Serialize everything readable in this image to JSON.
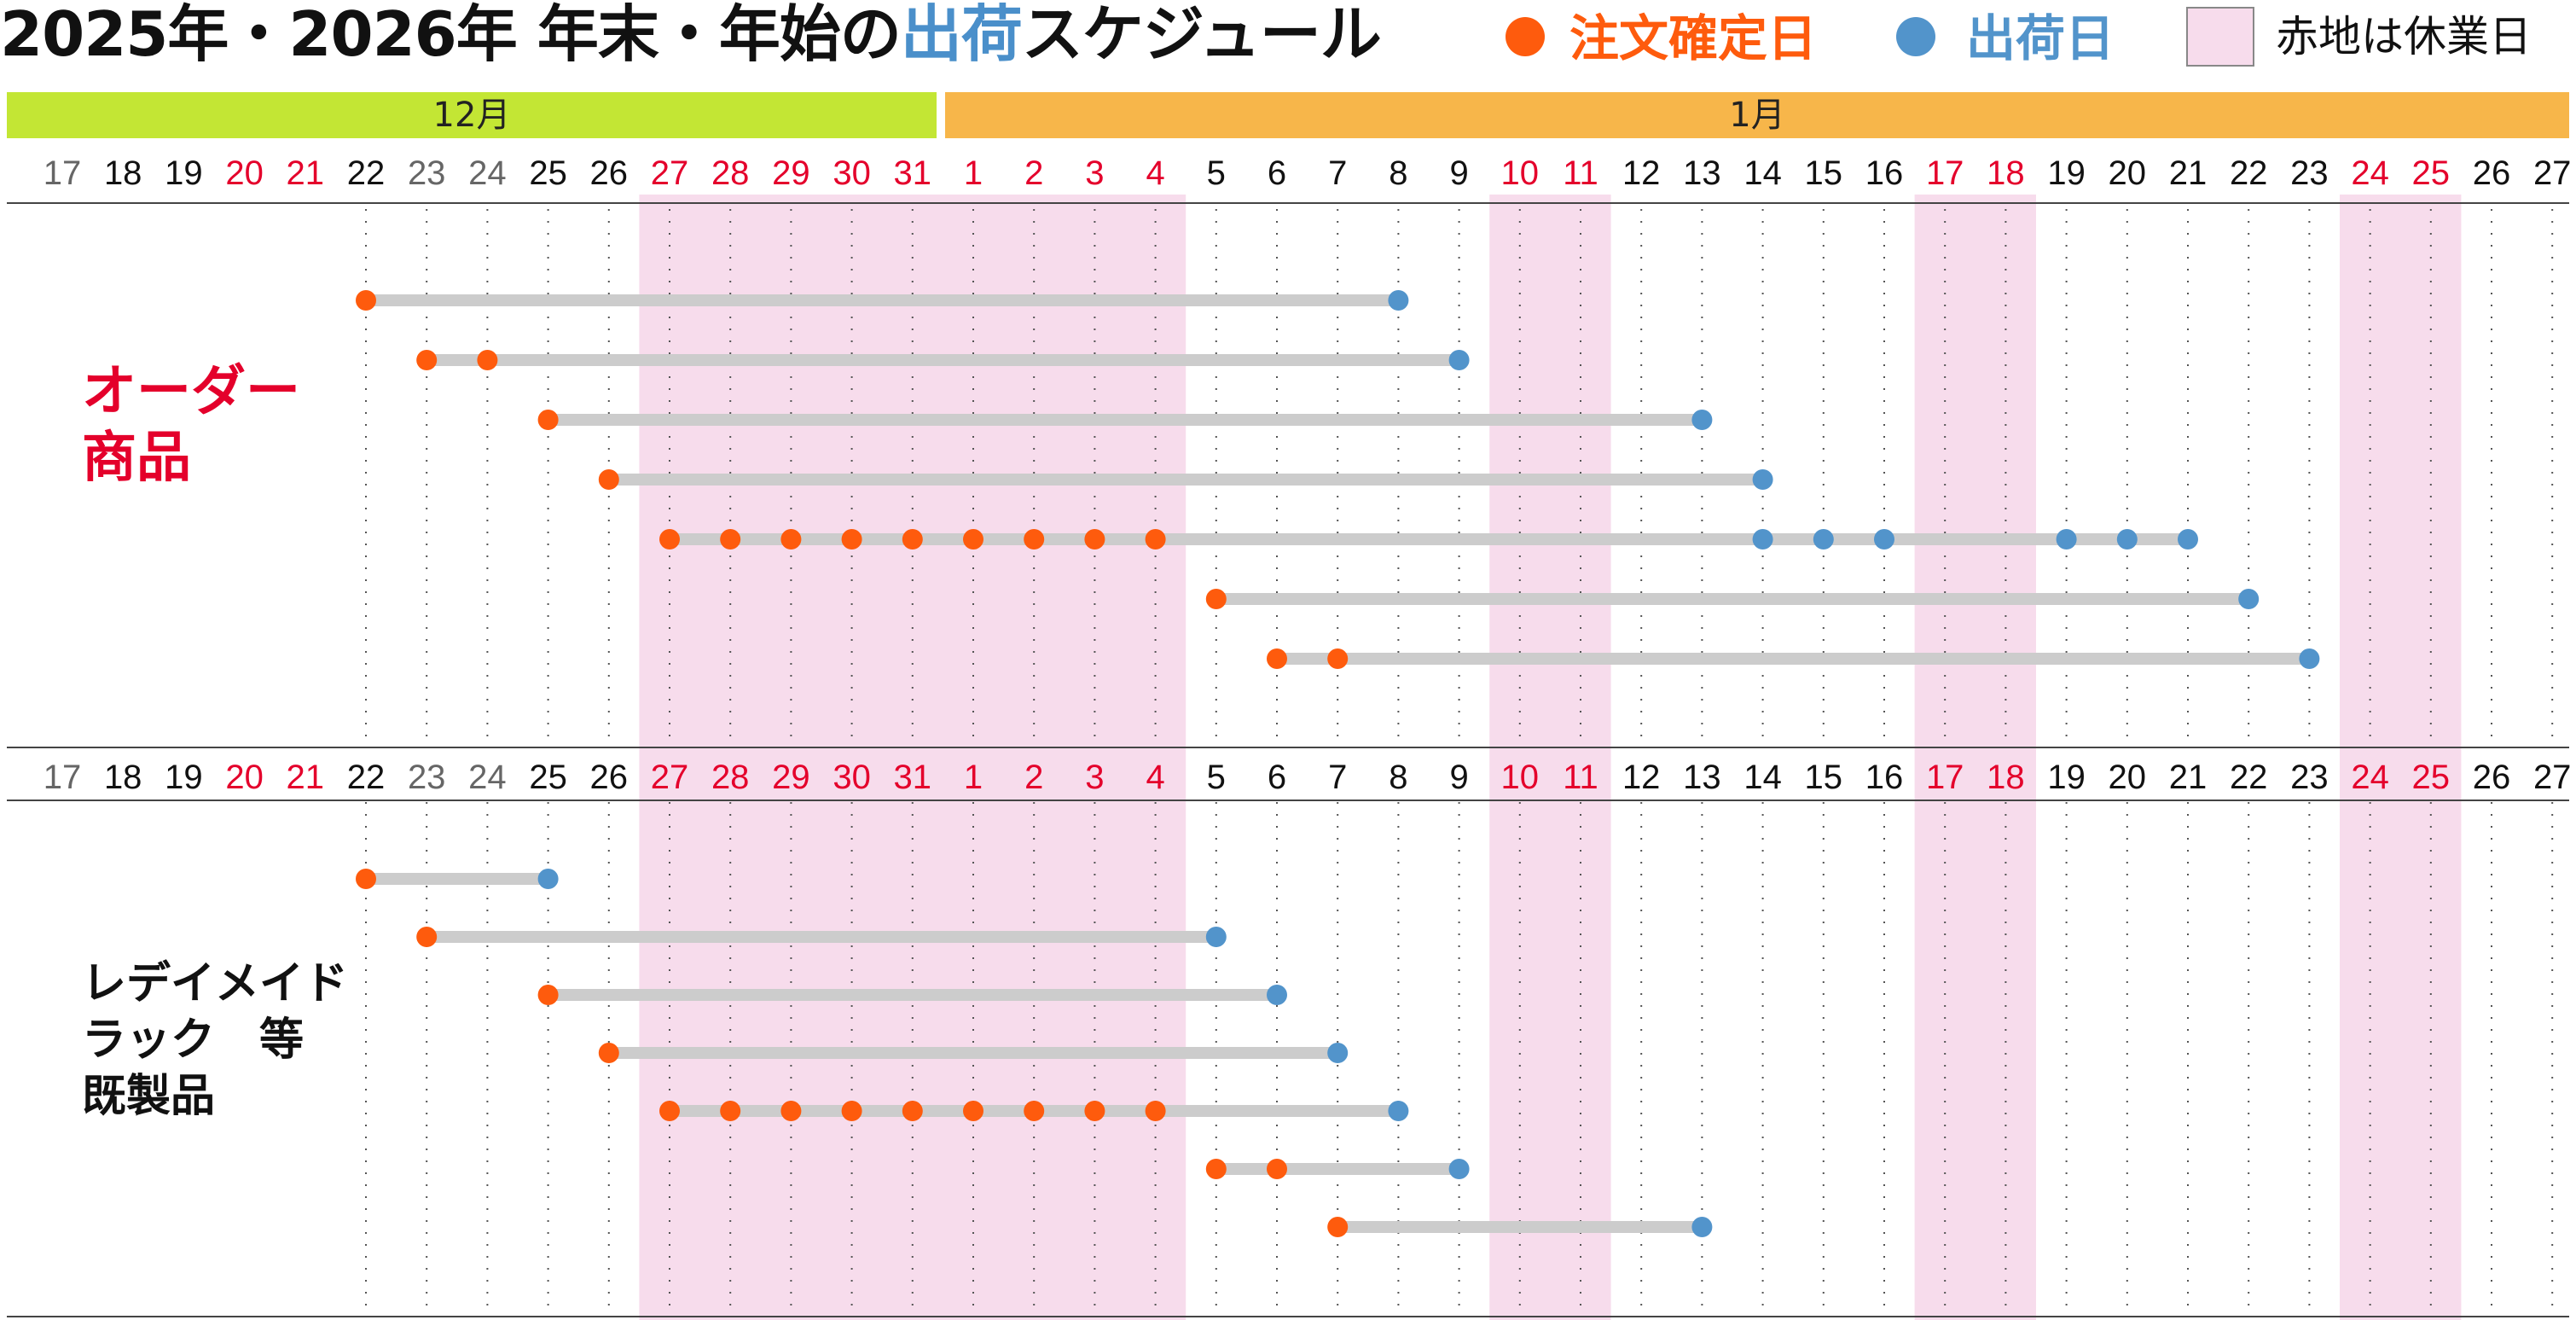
{
  "title": {
    "part1": "2025年・2026年 年末・年始の",
    "part2": "出荷",
    "part3": "スケジュール"
  },
  "legend": {
    "order_label": "注文確定日",
    "ship_label": "出荷日",
    "holiday_label": "赤地は休業日"
  },
  "colors": {
    "order": "#fe5b0d",
    "ship": "#5294cb",
    "holiday_bg": "#f7dcec",
    "bar": "#cccccc",
    "month_dec": "#c3e634",
    "month_jan": "#f7b64a",
    "red_day": "#e4002b",
    "gray_day": "#666666",
    "black_day": "#111111"
  },
  "months": [
    {
      "label": "12月"
    },
    {
      "label": "1月"
    }
  ],
  "days": [
    {
      "label": "17",
      "style": "gray"
    },
    {
      "label": "18",
      "style": "black"
    },
    {
      "label": "19",
      "style": "black"
    },
    {
      "label": "20",
      "style": "red"
    },
    {
      "label": "21",
      "style": "red"
    },
    {
      "label": "22",
      "style": "black"
    },
    {
      "label": "23",
      "style": "gray"
    },
    {
      "label": "24",
      "style": "gray"
    },
    {
      "label": "25",
      "style": "black"
    },
    {
      "label": "26",
      "style": "black"
    },
    {
      "label": "27",
      "style": "red"
    },
    {
      "label": "28",
      "style": "red"
    },
    {
      "label": "29",
      "style": "red"
    },
    {
      "label": "30",
      "style": "red"
    },
    {
      "label": "31",
      "style": "red"
    },
    {
      "label": "1",
      "style": "red"
    },
    {
      "label": "2",
      "style": "red"
    },
    {
      "label": "3",
      "style": "red"
    },
    {
      "label": "4",
      "style": "red"
    },
    {
      "label": "5",
      "style": "black"
    },
    {
      "label": "6",
      "style": "black"
    },
    {
      "label": "7",
      "style": "black"
    },
    {
      "label": "8",
      "style": "black"
    },
    {
      "label": "9",
      "style": "black"
    },
    {
      "label": "10",
      "style": "red"
    },
    {
      "label": "11",
      "style": "red"
    },
    {
      "label": "12",
      "style": "black"
    },
    {
      "label": "13",
      "style": "black"
    },
    {
      "label": "14",
      "style": "black"
    },
    {
      "label": "15",
      "style": "black"
    },
    {
      "label": "16",
      "style": "black"
    },
    {
      "label": "17",
      "style": "red"
    },
    {
      "label": "18",
      "style": "red"
    },
    {
      "label": "19",
      "style": "black"
    },
    {
      "label": "20",
      "style": "black"
    },
    {
      "label": "21",
      "style": "black"
    },
    {
      "label": "22",
      "style": "black"
    },
    {
      "label": "23",
      "style": "black"
    },
    {
      "label": "24",
      "style": "red"
    },
    {
      "label": "25",
      "style": "red"
    },
    {
      "label": "26",
      "style": "black"
    },
    {
      "label": "27",
      "style": "black"
    }
  ],
  "holiday_ranges": [
    {
      "from": "2025-12-27",
      "to": "2026-01-04"
    },
    {
      "from": "2026-01-10",
      "to": "2026-01-11"
    },
    {
      "from": "2026-01-17",
      "to": "2026-01-18"
    },
    {
      "from": "2026-01-24",
      "to": "2026-01-25"
    }
  ],
  "sections": [
    {
      "id": "order",
      "label_lines": [
        "オーダー",
        "商品"
      ],
      "label_color": "#e4002b",
      "rows": [
        {
          "orders": [
            "2025-12-22"
          ],
          "ships": [
            "2026-01-08"
          ]
        },
        {
          "orders": [
            "2025-12-23",
            "2025-12-24"
          ],
          "ships": [
            "2026-01-09"
          ]
        },
        {
          "orders": [
            "2025-12-25"
          ],
          "ships": [
            "2026-01-13"
          ]
        },
        {
          "orders": [
            "2025-12-26"
          ],
          "ships": [
            "2026-01-14"
          ]
        },
        {
          "orders": [
            "2025-12-27",
            "2025-12-28",
            "2025-12-29",
            "2025-12-30",
            "2025-12-31",
            "2026-01-01",
            "2026-01-02",
            "2026-01-03",
            "2026-01-04"
          ],
          "ships": [
            "2026-01-14",
            "2026-01-15",
            "2026-01-16",
            "2026-01-19",
            "2026-01-20",
            "2026-01-21"
          ]
        },
        {
          "orders": [
            "2026-01-05"
          ],
          "ships": [
            "2026-01-22"
          ]
        },
        {
          "orders": [
            "2026-01-06",
            "2026-01-07"
          ],
          "ships": [
            "2026-01-23"
          ]
        }
      ]
    },
    {
      "id": "readymade",
      "label_lines": [
        "レデイメイド",
        "ラック　等",
        "既製品"
      ],
      "label_color": "#111111",
      "rows": [
        {
          "orders": [
            "2025-12-22"
          ],
          "ships": [
            "2025-12-25"
          ]
        },
        {
          "orders": [
            "2025-12-23"
          ],
          "ships": [
            "2026-01-05"
          ]
        },
        {
          "orders": [
            "2025-12-25"
          ],
          "ships": [
            "2026-01-06"
          ]
        },
        {
          "orders": [
            "2025-12-26"
          ],
          "ships": [
            "2026-01-07"
          ]
        },
        {
          "orders": [
            "2025-12-27",
            "2025-12-28",
            "2025-12-29",
            "2025-12-30",
            "2025-12-31",
            "2026-01-01",
            "2026-01-02",
            "2026-01-03",
            "2026-01-04"
          ],
          "ships": [
            "2026-01-08"
          ]
        },
        {
          "orders": [
            "2026-01-05",
            "2026-01-06"
          ],
          "ships": [
            "2026-01-09"
          ]
        },
        {
          "orders": [
            "2026-01-07"
          ],
          "ships": [
            "2026-01-13"
          ]
        }
      ]
    }
  ]
}
